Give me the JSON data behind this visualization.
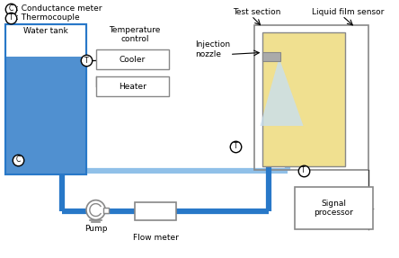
{
  "bg_color": "#ffffff",
  "pipe_blue": "#2878c8",
  "pipe_light": "#90c0e8",
  "tank_fill": "#5090d0",
  "tank_border": "#2878c8",
  "test_fill": "#f0e090",
  "spray_fill": "#c8dff0",
  "nozzle_fill": "#aaaaaa",
  "box_ec": "#888888",
  "labels": {
    "water_tank": "Water tank",
    "temp_control": "Temperature\ncontrol",
    "cooler": "Cooler",
    "heater": "Heater",
    "pump": "Pump",
    "flow_meter": "Flow meter",
    "test_section": "Test section",
    "liquid_film": "Liquid film sensor",
    "inj_nozzle": "Injection\nnozzle",
    "signal": "Signal\nprocessor",
    "legend_C": ": Conductance meter",
    "legend_T": ": Thermocouple"
  }
}
